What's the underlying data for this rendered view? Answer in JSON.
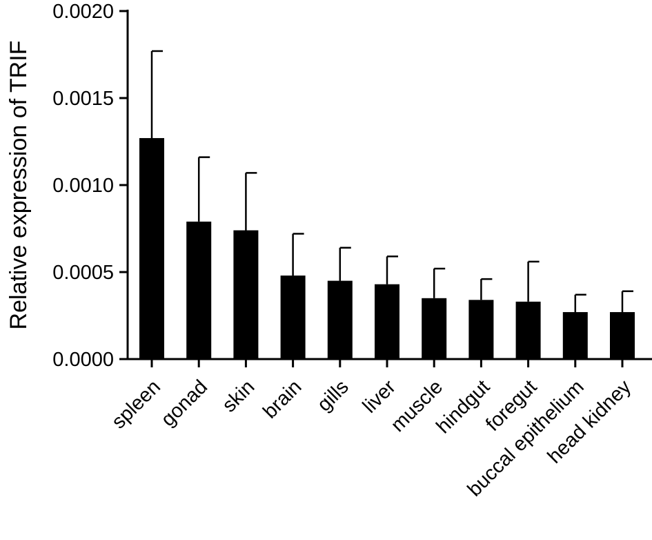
{
  "chart_data": {
    "type": "bar",
    "title": "",
    "xlabel": "",
    "ylabel": "Relative expression of TRIF",
    "ylim": [
      0,
      0.002
    ],
    "yticks": [
      "0.0000",
      "0.0005",
      "0.0010",
      "0.0015",
      "0.0020"
    ],
    "grid": false,
    "legend": "none",
    "bar_color": "#000000",
    "categories": [
      "spleen",
      "gonad",
      "skin",
      "brain",
      "gills",
      "liver",
      "muscle",
      "hindgut",
      "foregut",
      "buccal epithelium",
      "head kidney"
    ],
    "values": [
      0.00127,
      0.00079,
      0.00074,
      0.00048,
      0.00045,
      0.00043,
      0.00035,
      0.00034,
      0.00033,
      0.00027,
      0.00027
    ],
    "error_upper": [
      0.00177,
      0.00116,
      0.00107,
      0.00072,
      0.00064,
      0.00059,
      0.00052,
      0.00046,
      0.00056,
      0.00037,
      0.00039
    ]
  }
}
